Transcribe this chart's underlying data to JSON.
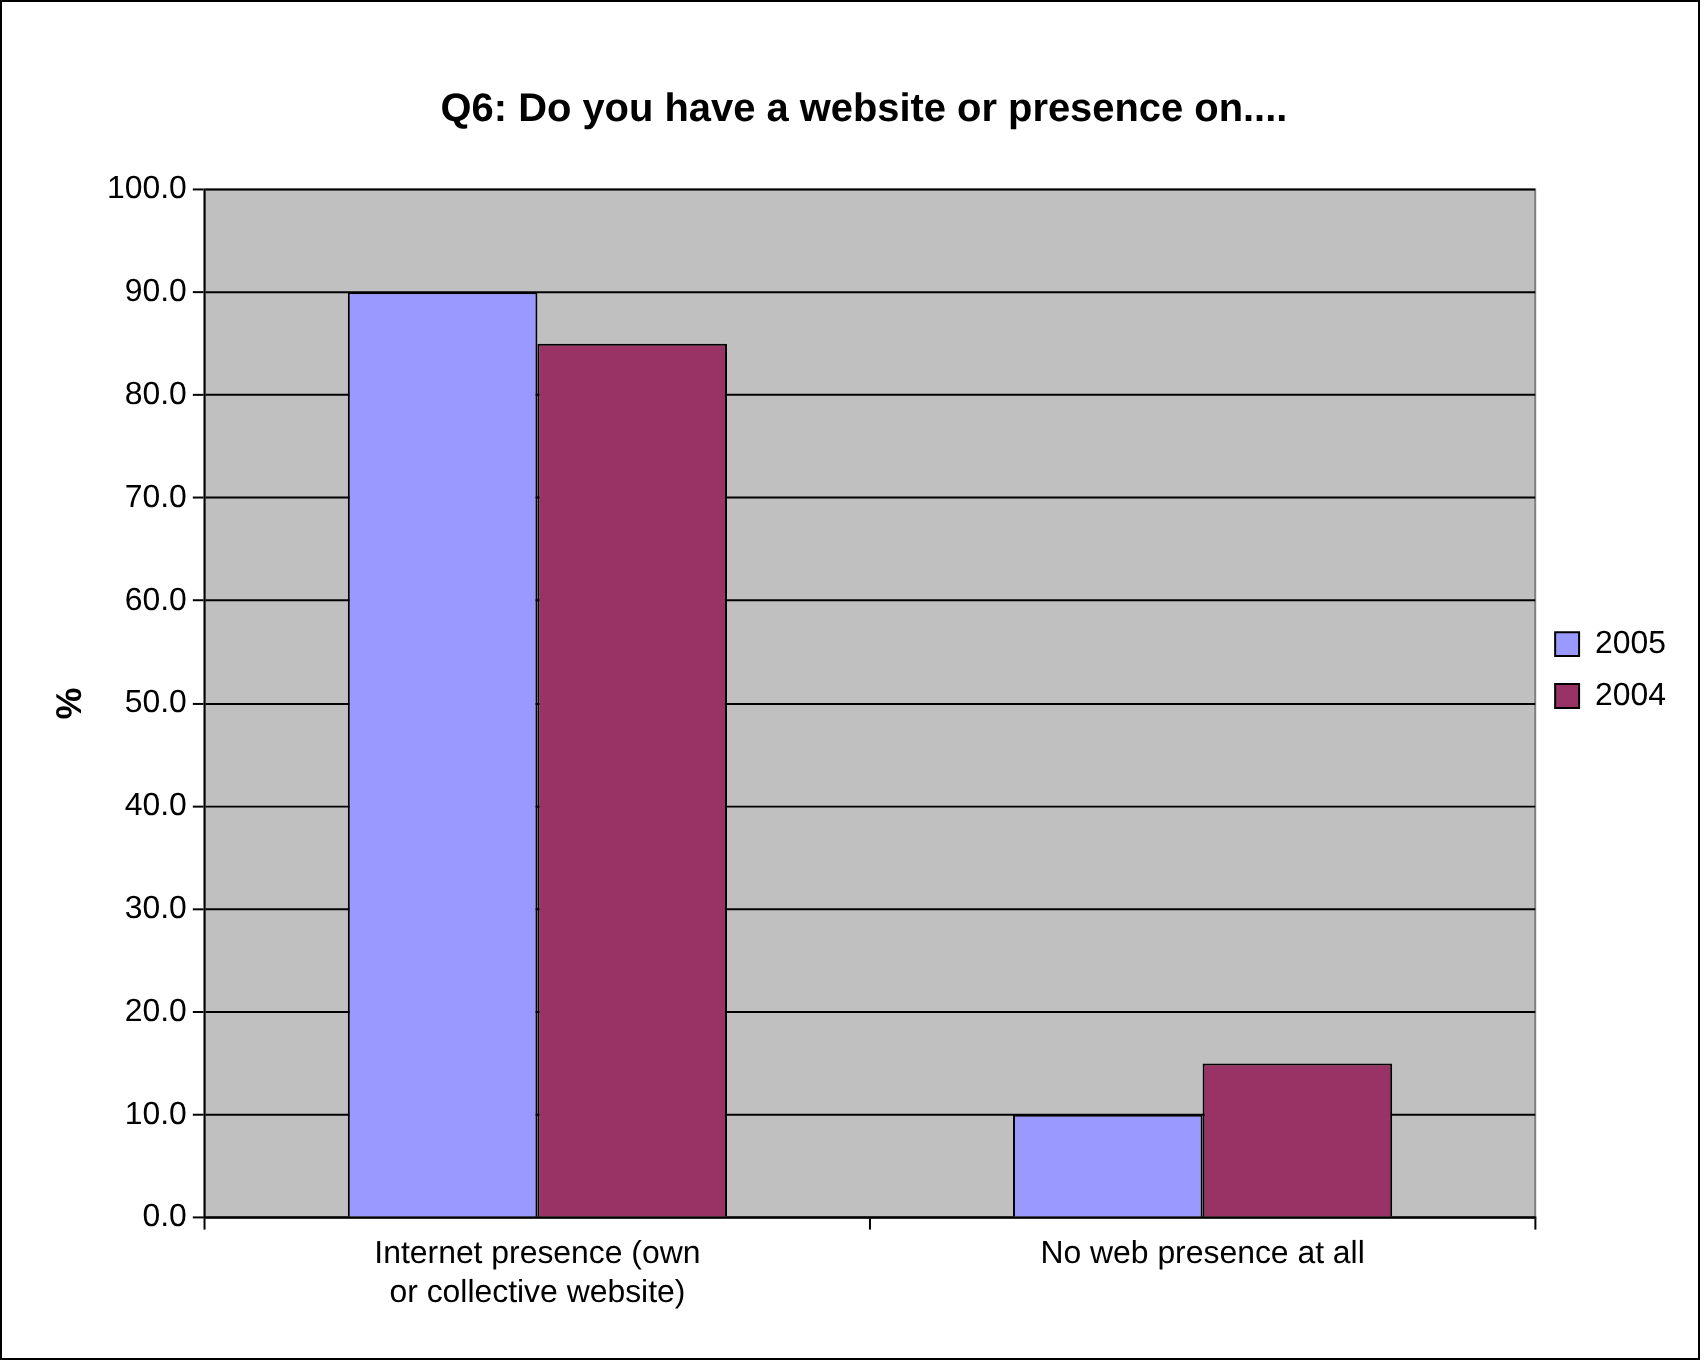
{
  "chart_data": {
    "type": "bar",
    "title": "Q6: Do you have a website or presence on....",
    "ylabel": "%",
    "categories": [
      "Internet presence (own or collective website)",
      "No web presence at all"
    ],
    "series": [
      {
        "name": "2005",
        "color": "#9999ff",
        "values": [
          90,
          10
        ]
      },
      {
        "name": "2004",
        "color": "#993366",
        "values": [
          85,
          15
        ]
      }
    ],
    "ylim": [
      0,
      100
    ],
    "yticks": [
      {
        "value": 0,
        "label": "0.0"
      },
      {
        "value": 10,
        "label": "10.0"
      },
      {
        "value": 20,
        "label": "20.0"
      },
      {
        "value": 30,
        "label": "30.0"
      },
      {
        "value": 40,
        "label": "40.0"
      },
      {
        "value": 50,
        "label": "50.0"
      },
      {
        "value": 60,
        "label": "60.0"
      },
      {
        "value": 70,
        "label": "70.0"
      },
      {
        "value": 80,
        "label": "80.0"
      },
      {
        "value": 90,
        "label": "90.0"
      },
      {
        "value": 100,
        "label": "100.0"
      }
    ],
    "grid": "y",
    "legend": "right"
  }
}
